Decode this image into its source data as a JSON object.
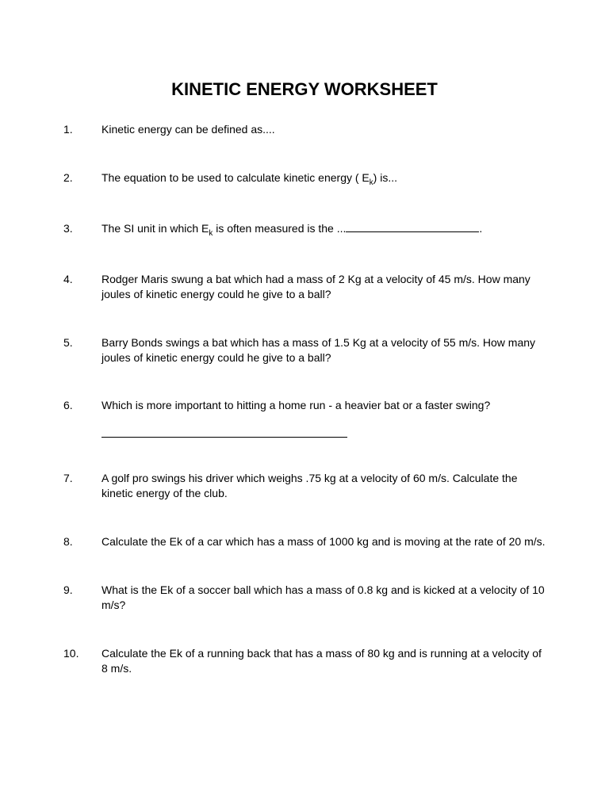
{
  "title": "KINETIC ENERGY WORKSHEET",
  "title_fontsize": 22,
  "body_fontsize": 14,
  "text_color": "#000000",
  "background_color": "#ffffff",
  "questions": [
    {
      "number": "1.",
      "text_parts": [
        "Kinetic energy can be defined as...."
      ],
      "has_answer_line": false
    },
    {
      "number": "2.",
      "text_parts": [
        "The equation to be used to calculate kinetic energy ( E",
        {
          "sub": "k"
        },
        ") is..."
      ],
      "has_answer_line": false
    },
    {
      "number": "3.",
      "text_parts": [
        "The SI unit in which E",
        {
          "sub": "k"
        },
        " is often measured is the ...",
        {
          "blank": true
        },
        "."
      ],
      "has_answer_line": false
    },
    {
      "number": "4.",
      "text_parts": [
        "Rodger Maris swung a bat which had a mass of 2 Kg at a velocity of 45 m/s. How many joules of kinetic energy could he give to a ball?"
      ],
      "has_answer_line": false
    },
    {
      "number": "5.",
      "text_parts": [
        "Barry Bonds swings a bat which has a mass of 1.5 Kg at a velocity of 55 m/s. How many joules of kinetic energy could he give to a ball?"
      ],
      "has_answer_line": false
    },
    {
      "number": "6.",
      "text_parts": [
        "Which is more important to hitting a home run  - a heavier bat or a faster swing?"
      ],
      "has_answer_line": true
    },
    {
      "number": "7.",
      "text_parts": [
        "A golf pro swings his driver which weighs .75 kg at a velocity of 60 m/s. Calculate the kinetic energy of the club."
      ],
      "has_answer_line": false
    },
    {
      "number": "8.",
      "text_parts": [
        "Calculate the Ek of a car which has a mass of 1000 kg and is moving at the rate of 20 m/s."
      ],
      "has_answer_line": false
    },
    {
      "number": "9.",
      "text_parts": [
        "What is the Ek of a soccer ball which has a mass of 0.8 kg and is kicked at a velocity of 10 m/s?"
      ],
      "has_answer_line": false
    },
    {
      "number": "10.",
      "text_parts": [
        "Calculate the Ek of a running back that has a mass of 80 kg and is running at a velocity of 8 m/s."
      ],
      "has_answer_line": false
    }
  ]
}
